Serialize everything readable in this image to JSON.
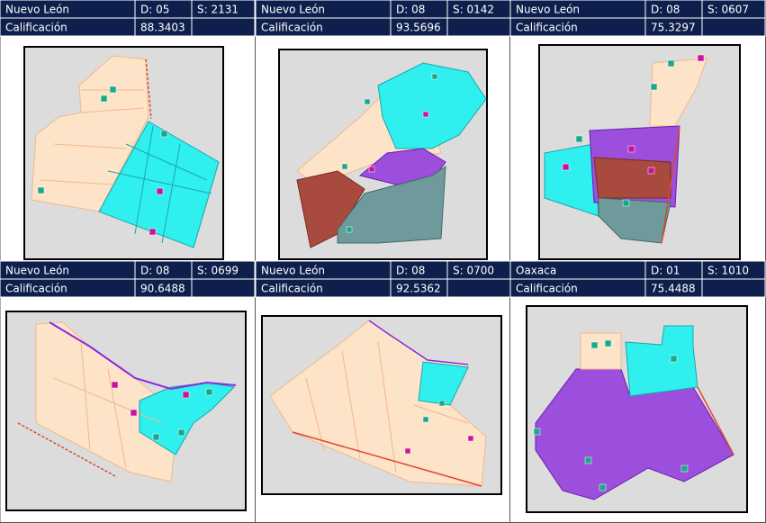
{
  "panels": [
    {
      "state": "Nuevo León",
      "district": "D: 05",
      "section": "S: 2131",
      "label": "Calificación",
      "score": "88.3403"
    },
    {
      "state": "Nuevo León",
      "district": "D: 08",
      "section": "S: 0142",
      "label": "Calificación",
      "score": "93.5696"
    },
    {
      "state": "Nuevo León",
      "district": "D: 08",
      "section": "S: 0607",
      "label": "Calificación",
      "score": "75.3297"
    },
    {
      "state": "Nuevo León",
      "district": "D: 08",
      "section": "S: 0699",
      "label": "Calificación",
      "score": "90.6488"
    },
    {
      "state": "Nuevo León",
      "district": "D: 08",
      "section": "S: 0700",
      "label": "Calificación",
      "score": "92.5362"
    },
    {
      "state": "Oaxaca",
      "district": "D: 01",
      "section": "S: 1010",
      "label": "Calificación",
      "score": "75.4488"
    }
  ]
}
